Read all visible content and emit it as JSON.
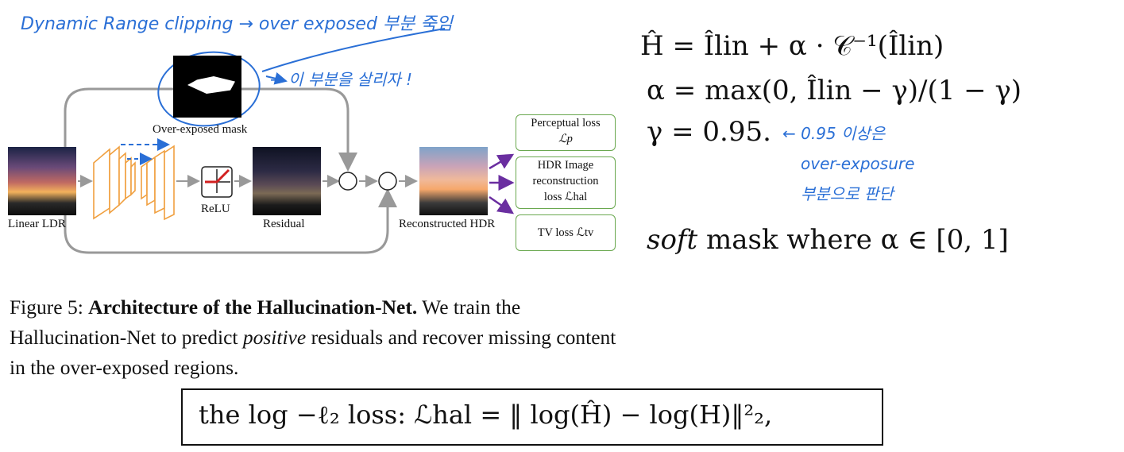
{
  "annotations": {
    "top_note": "Dynamic Range clipping → over exposed 부분 죽임",
    "mask_note": "→ 이 부분을 살리자 !",
    "gamma_note_1": "← 0.95 이상은",
    "gamma_note_2": "over-exposure",
    "gamma_note_3": "부분으로 판단"
  },
  "diagram": {
    "input_label": "Linear LDR",
    "mask_label": "Over-exposed mask",
    "relu_label": "ReLU",
    "residual_label": "Residual",
    "output_label": "Reconstructed HDR",
    "op_mul": "∘",
    "op_add": "+",
    "loss_perceptual_1": "Perceptual loss",
    "loss_perceptual_2": "ℒp",
    "loss_hdr_1": "HDR Image",
    "loss_hdr_2": "reconstruction",
    "loss_hdr_3": "loss ℒhal",
    "loss_tv": "TV loss ℒtv"
  },
  "caption": {
    "prefix": "Figure 5: ",
    "bold": "Architecture of the Hallucination-Net.",
    "text_1": " We train the Hallucination-Net to predict ",
    "italic": "positive",
    "text_2": " residuals and recover missing content in the over-exposed regions."
  },
  "equations": {
    "h_hat": "Ĥ  =  Îlin + α · 𝒞⁻¹(Îlin)",
    "alpha": "α = max(0, Îlin − γ)/(1 − γ)",
    "gamma": "γ = 0.95.",
    "soft_mask_italic": "soft",
    "soft_mask_rest": " mask where α ∈ [0, 1]",
    "loss": "the  log −ℓ₂  loss:  ℒhal  =  ‖ log(Ĥ) − log(H)‖²₂,"
  },
  "colors": {
    "handwriting": "#2a6fd6",
    "arrows_gray": "#999999",
    "network": "#f0a040",
    "loss_box_border": "#6aa84f",
    "loss_arrows": "#6a2ea0",
    "relu_red": "#d22020"
  }
}
